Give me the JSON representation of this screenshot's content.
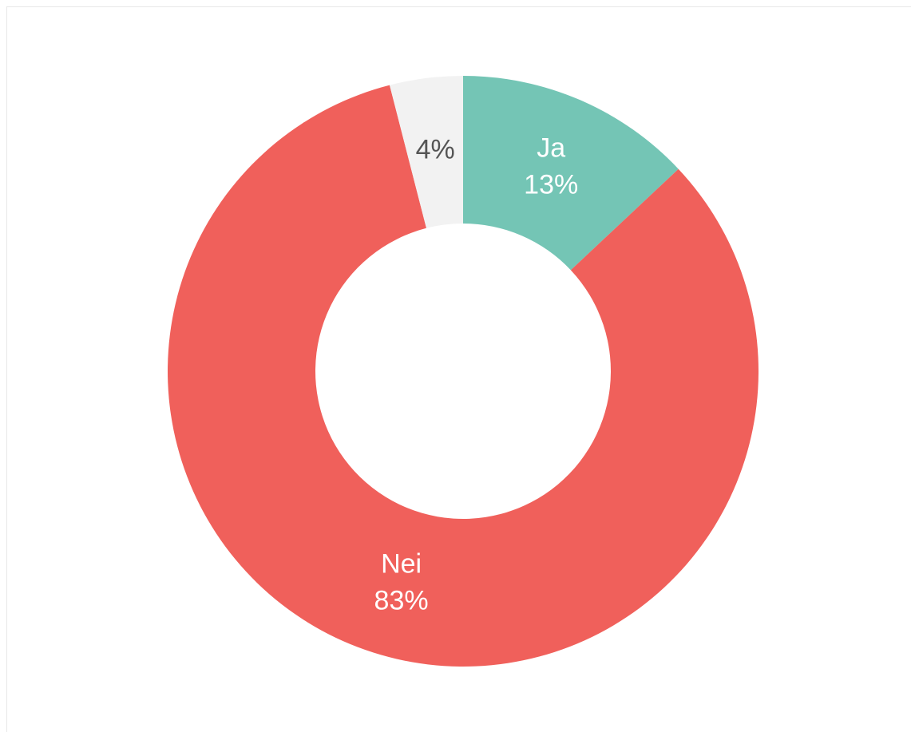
{
  "chart_data": {
    "type": "donut",
    "categories": [
      "Ja",
      "Nei",
      null
    ],
    "values": [
      13,
      83,
      4
    ],
    "value_labels": [
      "13%",
      "83%",
      "4%"
    ],
    "colors": [
      "#74c5b5",
      "#f0605b",
      "#f2f2f2"
    ]
  }
}
